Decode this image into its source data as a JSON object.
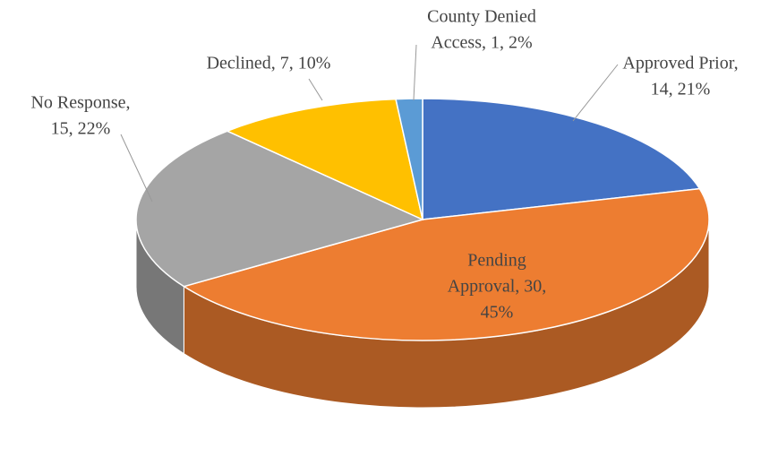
{
  "chart_data": {
    "type": "pie3d",
    "categories": [
      "Approved Prior",
      "Pending Approval",
      "No Response",
      "Declined",
      "County Denied Access"
    ],
    "values": [
      14,
      30,
      15,
      7,
      1
    ],
    "value_labels": [
      [
        "Approved Prior,",
        "14, 21%"
      ],
      [
        "Pending",
        "Approval, 30,",
        "45%"
      ],
      [
        "No Response,",
        "15, 22%"
      ],
      [
        "Declined, 7, 10%"
      ],
      [
        "County Denied",
        "Access, 1, 2%"
      ]
    ],
    "colors": [
      "#4472c4",
      "#ed7d31",
      "#a5a5a5",
      "#ffc000",
      "#5b9bd5"
    ]
  }
}
